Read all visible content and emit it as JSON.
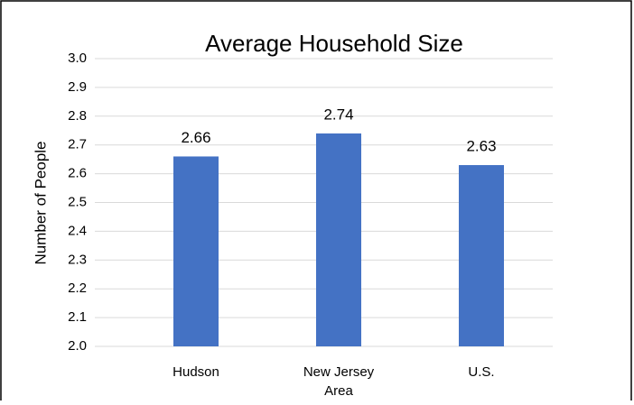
{
  "chart_data": {
    "type": "bar",
    "title": "Average Household Size",
    "x_label": "Area",
    "y_label": "Number of People",
    "categories": [
      "Hudson",
      "New Jersey",
      "U.S."
    ],
    "values": [
      2.66,
      2.74,
      2.63
    ],
    "color": "#4472c4",
    "ylim": [
      2.0,
      3.0
    ],
    "yticks": [
      {
        "value": 2.0,
        "label": "2.0"
      },
      2.1,
      2.2,
      2.3,
      2.4,
      2.5,
      2.6,
      2.7,
      2.8,
      2.9,
      {
        "value": 3.0,
        "label": "3.0"
      }
    ],
    "grid": true
  }
}
